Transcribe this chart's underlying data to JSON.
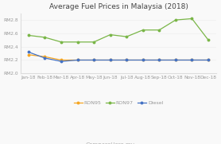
{
  "title": "Average Fuel Prices in Malaysia (2018)",
  "months": [
    "Jan-18",
    "Feb-18",
    "Mar-18",
    "Apr-18",
    "May-18",
    "Jun-18",
    "Jul-18",
    "Aug-18",
    "Sep-18",
    "Oct-18",
    "Nov-18",
    "Dec-18"
  ],
  "RON95": [
    2.28,
    2.25,
    2.2,
    2.2,
    2.2,
    2.2,
    2.2,
    2.2,
    2.2,
    2.2,
    2.2,
    2.2
  ],
  "RON97": [
    2.57,
    2.54,
    2.47,
    2.47,
    2.47,
    2.58,
    2.55,
    2.65,
    2.65,
    2.8,
    2.82,
    2.5
  ],
  "Diesel": [
    2.32,
    2.23,
    2.18,
    2.2,
    2.2,
    2.2,
    2.2,
    2.2,
    2.2,
    2.2,
    2.2,
    2.2
  ],
  "RON95_color": "#f5a623",
  "RON97_color": "#7ab648",
  "Diesel_color": "#4472c4",
  "ylim": [
    2.0,
    2.9
  ],
  "yticks": [
    2.0,
    2.2,
    2.4,
    2.6,
    2.8
  ],
  "ytick_labels": [
    "RM2.0",
    "RM2.2",
    "RM2.4",
    "RM2.6",
    "RM2.8"
  ],
  "bg_color": "#f9f9f9",
  "title_fontsize": 6.5,
  "tick_fontsize": 4.2,
  "legend_fontsize": 4.5,
  "watermark_fontsize": 5.0
}
